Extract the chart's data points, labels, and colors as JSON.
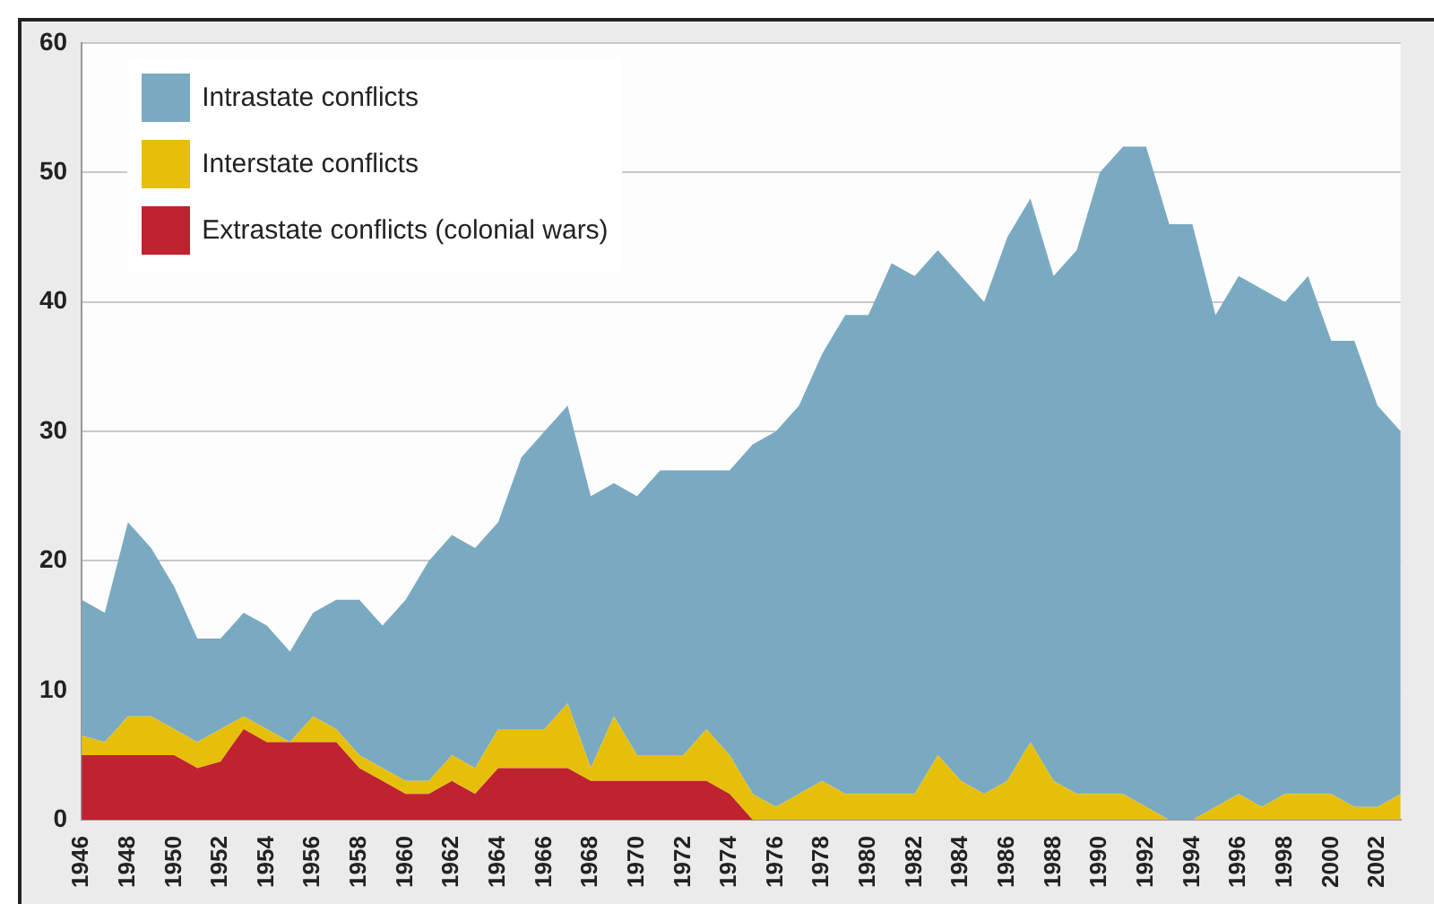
{
  "chart_data": {
    "type": "area",
    "stacked": true,
    "categories": [
      "1946",
      null,
      "1948",
      null,
      "1950",
      null,
      "1952",
      null,
      "1954",
      null,
      "1956",
      null,
      "1958",
      null,
      "1960",
      null,
      "1962",
      null,
      "1964",
      null,
      "1966",
      null,
      "1968",
      null,
      "1970",
      null,
      "1972",
      null,
      "1974",
      null,
      "1976",
      null,
      "1978",
      null,
      "1980",
      null,
      "1982",
      null,
      "1984",
      null,
      "1986",
      null,
      "1988",
      null,
      "1990",
      null,
      "1992",
      null,
      "1994",
      null,
      "1996",
      null,
      "1998",
      null,
      "2000",
      null,
      "2002",
      null
    ],
    "series": [
      {
        "name": "Extrastate conflicts (colonial wars)",
        "color": "#bf2330",
        "values": [
          5,
          5,
          5,
          5,
          5,
          4,
          4.5,
          7,
          6,
          6,
          6,
          6,
          4,
          3,
          2,
          2,
          3,
          2,
          4,
          4,
          4,
          4,
          3,
          3,
          3,
          3,
          3,
          3,
          2,
          0,
          0,
          0,
          0,
          0,
          0,
          0,
          0,
          0,
          0,
          0,
          0,
          0,
          0,
          0,
          0,
          0,
          0,
          0,
          0,
          0,
          0,
          0,
          0,
          0,
          0,
          0,
          0,
          0
        ]
      },
      {
        "name": "Interstate conflicts",
        "color": "#e6bf0a",
        "values": [
          1.5,
          1,
          3,
          3,
          2,
          2,
          2.5,
          1,
          1,
          0,
          2,
          1,
          1,
          1,
          1,
          1,
          2,
          2,
          3,
          3,
          3,
          5,
          1,
          5,
          2,
          2,
          2,
          4,
          3,
          2,
          1,
          2,
          3,
          2,
          2,
          2,
          2,
          5,
          3,
          2,
          3,
          6,
          3,
          2,
          2,
          2,
          1,
          0,
          0,
          1,
          2,
          1,
          2,
          2,
          2,
          1,
          1,
          2
        ]
      },
      {
        "name": "Intrastate conflicts",
        "color": "#7aaac2",
        "values": [
          10.5,
          10,
          15,
          13,
          11,
          8,
          7,
          8,
          8,
          7,
          8,
          10,
          12,
          11,
          14,
          17,
          17,
          17,
          16,
          21,
          23,
          23,
          21,
          18,
          20,
          22,
          22,
          20,
          22,
          27,
          29,
          30,
          33,
          37,
          37,
          41,
          40,
          39,
          39,
          38,
          42,
          42,
          39,
          42,
          48,
          50,
          51,
          46,
          46,
          38,
          40,
          40,
          38,
          40,
          35,
          36,
          31,
          28
        ]
      }
    ],
    "ylim": [
      0,
      60
    ],
    "yticks": [
      0,
      10,
      20,
      30,
      40,
      50,
      60
    ],
    "grid": "y",
    "legend": "top left"
  }
}
